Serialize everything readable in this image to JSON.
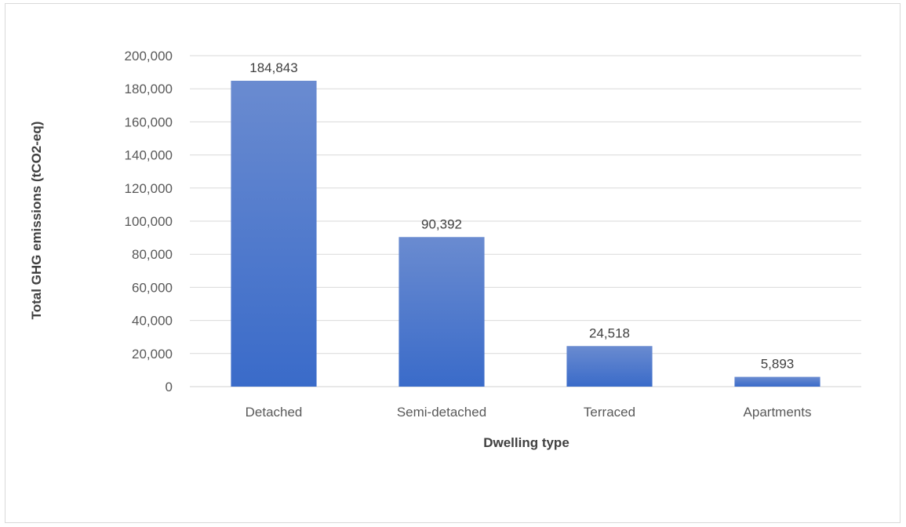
{
  "chart_data": {
    "type": "bar",
    "title": "",
    "xlabel": "Dwelling type",
    "ylabel": "Total GHG emissions (tCO2-eq)",
    "categories": [
      "Detached",
      "Semi-detached",
      "Terraced",
      "Apartments"
    ],
    "values": [
      184843,
      90392,
      24518,
      5893
    ],
    "data_labels": [
      "184,843",
      "90,392",
      "24,518",
      "5,893"
    ],
    "ylim": [
      0,
      200000
    ],
    "yticks": [
      "0",
      "20,000",
      "40,000",
      "60,000",
      "80,000",
      "100,000",
      "120,000",
      "140,000",
      "160,000",
      "180,000",
      "200,000"
    ],
    "grid": true,
    "legend": "none",
    "bar_color_top": "#6a8bd0",
    "bar_color_bottom": "#3a6bc9"
  }
}
